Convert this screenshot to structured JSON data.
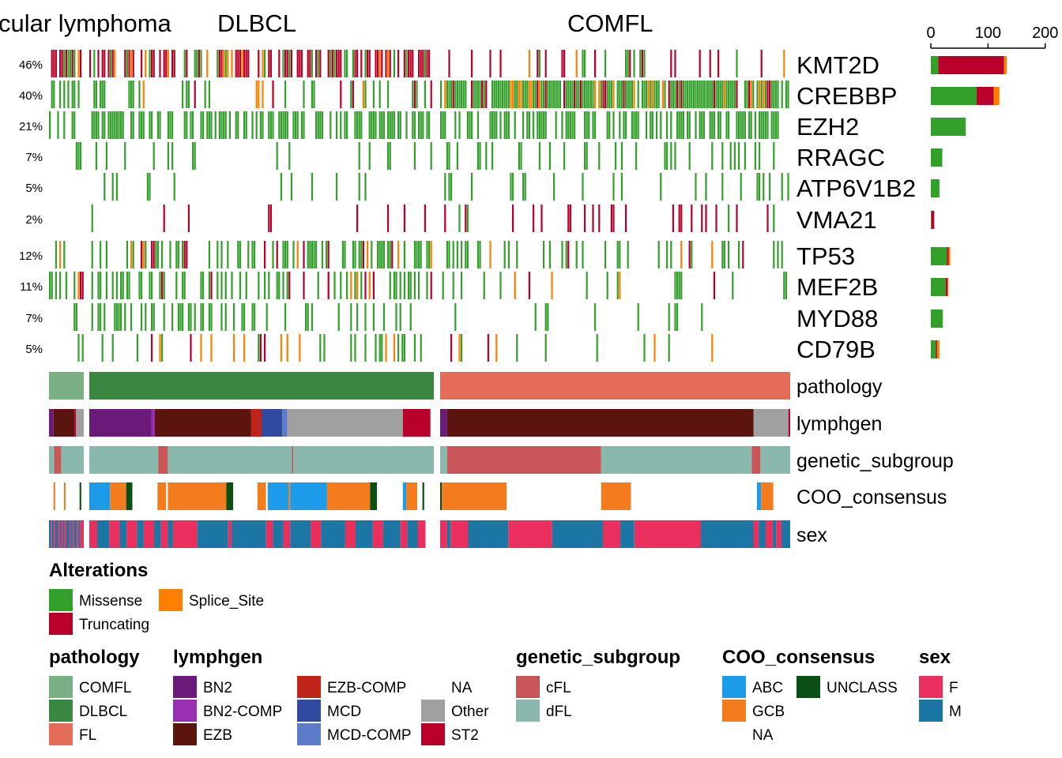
{
  "chart_data": {
    "type": "oncoplot",
    "column_groups": [
      {
        "name": "Follicular lymphoma",
        "shown_text": "cular lymphoma"
      },
      {
        "name": "DLBCL",
        "shown_text": "DLBCL"
      },
      {
        "name": "COMFL",
        "shown_text": "COMFL"
      }
    ],
    "alteration_colors": {
      "Missense": "#33a02c",
      "Truncating": "#b8002a",
      "Splice_Site": "#ff7f00"
    },
    "genes": [
      {
        "name": "KMT2D",
        "pct": "46%",
        "counts": {
          "Missense": 13,
          "Truncating": 115,
          "Splice_Site": 5
        },
        "group": 1
      },
      {
        "name": "CREBBP",
        "pct": "40%",
        "counts": {
          "Missense": 80,
          "Truncating": 30,
          "Splice_Site": 10
        },
        "group": 1
      },
      {
        "name": "EZH2",
        "pct": "21%",
        "counts": {
          "Missense": 61,
          "Truncating": 0,
          "Splice_Site": 0
        },
        "group": 1
      },
      {
        "name": "RRAGC",
        "pct": "7%",
        "counts": {
          "Missense": 20,
          "Truncating": 0,
          "Splice_Site": 0
        },
        "group": 1
      },
      {
        "name": "ATP6V1B2",
        "pct": "5%",
        "counts": {
          "Missense": 15,
          "Truncating": 0,
          "Splice_Site": 0
        },
        "group": 1
      },
      {
        "name": "VMA21",
        "pct": "2%",
        "counts": {
          "Missense": 1,
          "Truncating": 5,
          "Splice_Site": 0
        },
        "group": 1
      },
      {
        "name": "TP53",
        "pct": "12%",
        "counts": {
          "Missense": 28,
          "Truncating": 3,
          "Splice_Site": 3
        },
        "group": 2
      },
      {
        "name": "MEF2B",
        "pct": "11%",
        "counts": {
          "Missense": 26,
          "Truncating": 3,
          "Splice_Site": 2
        },
        "group": 2
      },
      {
        "name": "MYD88",
        "pct": "7%",
        "counts": {
          "Missense": 21,
          "Truncating": 0,
          "Splice_Site": 0
        },
        "group": 2
      },
      {
        "name": "CD79B",
        "pct": "5%",
        "counts": {
          "Missense": 9,
          "Truncating": 2,
          "Splice_Site": 4
        },
        "group": 2
      }
    ],
    "bar_axis": {
      "ticks": [
        0,
        100,
        200
      ],
      "max": 210
    },
    "annotation_tracks": [
      "pathology",
      "lymphgen",
      "genetic_subgroup",
      "COO_consensus",
      "sex"
    ],
    "annotation_colors": {
      "pathology": {
        "COMFL": "#7bb087",
        "DLBCL": "#3a8741",
        "FL": "#e46c58"
      },
      "lymphgen": {
        "BN2": "#6a1b7a",
        "BN2-COMP": "#9b2fb4",
        "EZB": "#5c140e",
        "EZB-COMP": "#c02418",
        "MCD": "#2f4a9e",
        "MCD-COMP": "#5d7bc9",
        "NA": "#ffffff",
        "Other": "#a0a0a0",
        "ST2": "#b8002a"
      },
      "genetic_subgroup": {
        "cFL": "#c85558",
        "dFL": "#8ab8ac"
      },
      "COO_consensus": {
        "ABC": "#1b9bea",
        "GCB": "#f47c1d",
        "NA": "#ffffff",
        "UNCLASS": "#0a5014"
      },
      "sex": {
        "F": "#ea2e5e",
        "M": "#1b76a4"
      }
    },
    "legend_sections": [
      {
        "title": "Alteration",
        "entries": [
          "Missense",
          "Splice_Site",
          "Truncating"
        ]
      }
    ]
  },
  "legend": {
    "alterations_title": "Alterations",
    "alterations": [
      {
        "label": "Missense",
        "color": "#33a02c"
      },
      {
        "label": "Splice_Site",
        "color": "#ff7f00"
      },
      {
        "label": "Truncating",
        "color": "#b8002a"
      }
    ],
    "groups": [
      {
        "title": "pathology",
        "items": [
          {
            "label": "COMFL",
            "color": "#7bb087"
          },
          {
            "label": "DLBCL",
            "color": "#3a8741"
          },
          {
            "label": "FL",
            "color": "#e46c58"
          }
        ]
      },
      {
        "title": "lymphgen",
        "items": [
          {
            "label": "BN2",
            "color": "#6a1b7a"
          },
          {
            "label": "BN2-COMP",
            "color": "#9b2fb4"
          },
          {
            "label": "EZB",
            "color": "#5c140e"
          },
          {
            "label": "EZB-COMP",
            "color": "#c02418"
          },
          {
            "label": "MCD",
            "color": "#2f4a9e"
          },
          {
            "label": "MCD-COMP",
            "color": "#5d7bc9"
          },
          {
            "label": "NA",
            "color": "#ffffff"
          },
          {
            "label": "Other",
            "color": "#a0a0a0"
          },
          {
            "label": "ST2",
            "color": "#b8002a"
          }
        ]
      },
      {
        "title": "genetic_subgroup",
        "items": [
          {
            "label": "cFL",
            "color": "#c85558"
          },
          {
            "label": "dFL",
            "color": "#8ab8ac"
          }
        ]
      },
      {
        "title": "COO_consensus",
        "items": [
          {
            "label": "ABC",
            "color": "#1b9bea"
          },
          {
            "label": "GCB",
            "color": "#f47c1d"
          },
          {
            "label": "NA",
            "color": "#ffffff"
          },
          {
            "label": "UNCLASS",
            "color": "#0a5014"
          }
        ]
      },
      {
        "title": "sex",
        "items": [
          {
            "label": "F",
            "color": "#ea2e5e"
          },
          {
            "label": "M",
            "color": "#1b76a4"
          }
        ]
      }
    ]
  }
}
